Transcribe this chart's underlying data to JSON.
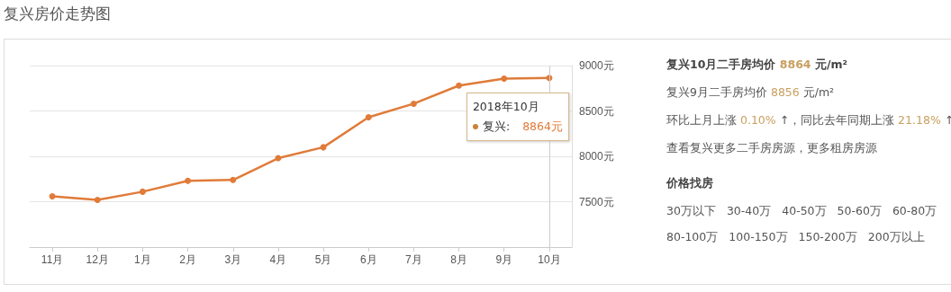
{
  "chart_data": {
    "type": "line",
    "title": "复兴房价走势图",
    "categories": [
      "11月",
      "12月",
      "1月",
      "2月",
      "3月",
      "4月",
      "5月",
      "6月",
      "7月",
      "8月",
      "9月",
      "10月"
    ],
    "series": [
      {
        "color": "#e07b39",
        "values": [
          7560,
          7520,
          7610,
          7730,
          7740,
          7980,
          8100,
          8430,
          8580,
          8780,
          8856,
          8864
        ]
      }
    ],
    "ylim": [
      7000,
      9000
    ],
    "yticks": [
      {
        "value": 7500,
        "label": "7500元"
      },
      {
        "value": 8000,
        "label": "8000元"
      },
      {
        "value": 8500,
        "label": "8500元"
      },
      {
        "value": 9000,
        "label": "9000元"
      }
    ],
    "grid": "y",
    "marker": "circle",
    "line_style": "solid",
    "ref_lines": [
      {
        "axis": "x",
        "value": "10月",
        "color": "#cccccc"
      }
    ],
    "annotations": [
      "2018年10月",
      "复兴: 8864元",
      "复兴10月二手房均价 8864 元/m²",
      "复兴9月二手房均价 8856 元/m²",
      "环比上月上涨 0.10% ↑，同比去年同期上涨 21.18% ↑",
      "查看复兴更多二手房房源，更多租房房源",
      "价格找房",
      "30万以下",
      "30-40万",
      "40-50万",
      "50-60万",
      "60-80万",
      "80-100万",
      "100-150万",
      "150-200万",
      "200万以上"
    ]
  }
}
